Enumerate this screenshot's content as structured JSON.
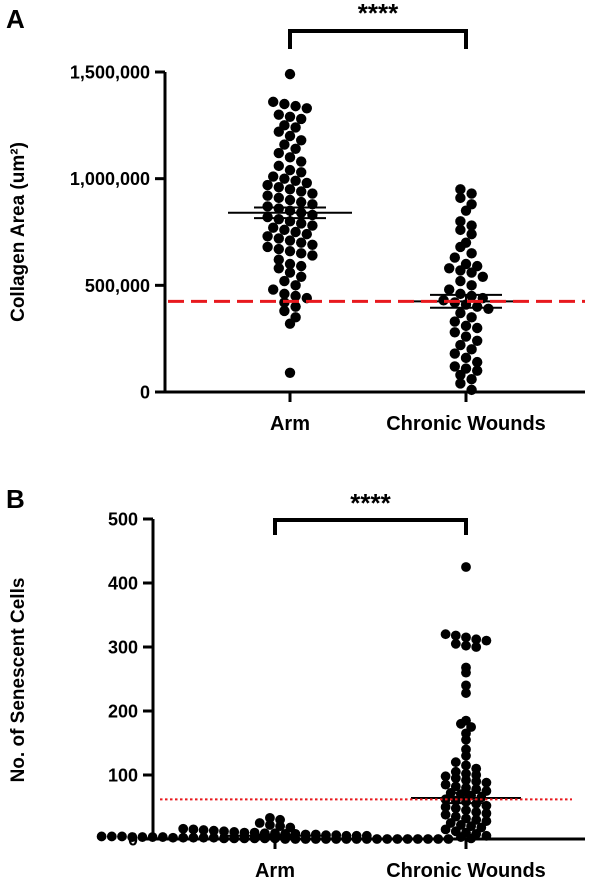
{
  "chart_data": [
    {
      "panel": "A",
      "type": "scatter",
      "title": "",
      "xlabel": "",
      "ylabel": "Collagen Area (um²)",
      "categories": [
        "Arm",
        "Chronic Wounds"
      ],
      "ylim": [
        0,
        1500000
      ],
      "yticks": [
        0,
        500000,
        1000000,
        1500000
      ],
      "ytick_labels": [
        "0",
        "500,000",
        "1,000,000",
        "1,500,000"
      ],
      "reference_line": {
        "value": 425000,
        "style": "dashed",
        "color": "#e8191e"
      },
      "significance": {
        "label": "****",
        "between": [
          "Arm",
          "Chronic Wounds"
        ]
      },
      "series": [
        {
          "category": "Arm",
          "mean": 840000,
          "sem_low": 815000,
          "sem_high": 865000,
          "values": [
            1490000,
            1360000,
            1350000,
            1340000,
            1330000,
            1300000,
            1290000,
            1280000,
            1250000,
            1240000,
            1220000,
            1200000,
            1180000,
            1160000,
            1140000,
            1120000,
            1100000,
            1080000,
            1060000,
            1040000,
            1030000,
            1010000,
            1000000,
            990000,
            980000,
            970000,
            960000,
            950000,
            940000,
            930000,
            920000,
            910000,
            900000,
            890000,
            880000,
            870000,
            860000,
            850000,
            840000,
            830000,
            820000,
            810000,
            800000,
            790000,
            780000,
            770000,
            760000,
            750000,
            740000,
            730000,
            720000,
            710000,
            700000,
            690000,
            680000,
            670000,
            660000,
            650000,
            640000,
            620000,
            600000,
            590000,
            580000,
            560000,
            540000,
            520000,
            500000,
            480000,
            460000,
            450000,
            440000,
            420000,
            400000,
            380000,
            350000,
            320000,
            90000
          ]
        },
        {
          "category": "Chronic Wounds",
          "mean": 425000,
          "sem_low": 395000,
          "sem_high": 455000,
          "values": [
            950000,
            930000,
            910000,
            880000,
            850000,
            800000,
            780000,
            760000,
            740000,
            700000,
            680000,
            650000,
            630000,
            600000,
            590000,
            580000,
            570000,
            560000,
            540000,
            520000,
            500000,
            480000,
            460000,
            450000,
            440000,
            430000,
            420000,
            410000,
            400000,
            390000,
            370000,
            350000,
            330000,
            310000,
            300000,
            280000,
            260000,
            240000,
            220000,
            200000,
            180000,
            160000,
            140000,
            120000,
            110000,
            100000,
            80000,
            60000,
            40000,
            10000
          ]
        }
      ]
    },
    {
      "panel": "B",
      "type": "scatter",
      "title": "",
      "xlabel": "",
      "ylabel": "No. of Senescent Cells",
      "categories": [
        "Arm",
        "Chronic Wounds"
      ],
      "ylim": [
        0,
        500
      ],
      "yticks": [
        0,
        100,
        200,
        300,
        400,
        500
      ],
      "ytick_labels": [
        "0",
        "100",
        "200",
        "300",
        "400",
        "500"
      ],
      "reference_line": {
        "value": 62,
        "style": "dotted",
        "color": "#e8191e"
      },
      "significance": {
        "label": "****",
        "between": [
          "Arm",
          "Chronic Wounds"
        ]
      },
      "series": [
        {
          "category": "Arm",
          "mean": 5,
          "sem_low": 3,
          "sem_high": 7,
          "values": [
            33,
            30,
            25,
            22,
            20,
            18,
            16,
            15,
            14,
            13,
            12,
            11,
            10,
            10,
            9,
            9,
            8,
            8,
            7,
            7,
            6,
            6,
            5,
            5,
            5,
            4,
            4,
            4,
            3,
            3,
            3,
            3,
            2,
            2,
            2,
            2,
            2,
            1,
            1,
            1,
            1,
            1,
            1,
            0,
            0,
            0,
            0,
            0,
            0,
            0,
            0,
            0,
            0,
            0,
            0,
            0,
            0,
            0,
            0,
            0
          ]
        },
        {
          "category": "Chronic Wounds",
          "mean": 64,
          "sem_low": 56,
          "sem_high": 72,
          "values": [
            425,
            320,
            318,
            315,
            312,
            310,
            305,
            302,
            300,
            268,
            260,
            240,
            228,
            185,
            180,
            175,
            165,
            155,
            140,
            130,
            120,
            115,
            110,
            105,
            102,
            100,
            98,
            95,
            92,
            90,
            88,
            85,
            82,
            80,
            78,
            75,
            72,
            70,
            68,
            65,
            62,
            60,
            58,
            55,
            52,
            50,
            48,
            45,
            42,
            40,
            38,
            35,
            32,
            30,
            28,
            25,
            22,
            20,
            18,
            15,
            12,
            10,
            8,
            5,
            3,
            1
          ]
        }
      ]
    }
  ]
}
